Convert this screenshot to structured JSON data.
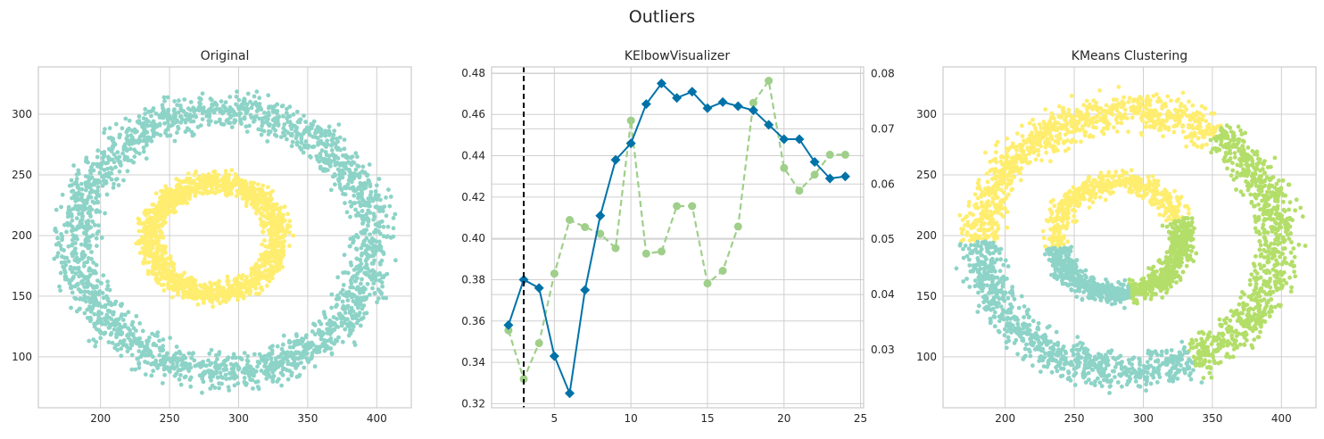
{
  "figure": {
    "title": "Outliers"
  },
  "colors": {
    "teal": "#8dd3c7",
    "yellow": "#ffed6f",
    "green": "#b3de69",
    "blue": "#1f77b4",
    "elbow_line": "#0072a8",
    "time_line": "#9fcf8a",
    "vline": "#000000",
    "grid": "#cfcfcf"
  },
  "chart_data": [
    {
      "type": "scatter",
      "title": "Original",
      "xlabel": "",
      "ylabel": "",
      "xlim": [
        155,
        425
      ],
      "ylim": [
        58,
        339
      ],
      "xticks": [
        200,
        250,
        300,
        350,
        400
      ],
      "yticks": [
        100,
        150,
        200,
        250,
        300
      ],
      "grid": true,
      "series": [
        {
          "color": "#8dd3c7",
          "shape": "ring",
          "center": [
            290,
            195
          ],
          "inner_radius": 85,
          "outer_radius": 130,
          "n_points": 2200
        },
        {
          "color": "#ffed6f",
          "shape": "ring",
          "center": [
            282,
            198
          ],
          "inner_radius": 32,
          "outer_radius": 60,
          "n_points": 1400
        }
      ]
    },
    {
      "type": "line",
      "title": "KElbowVisualizer",
      "xlabel": "",
      "ylabel": "",
      "xlim": [
        0.9,
        25.2
      ],
      "ylim": [
        0.318,
        0.483
      ],
      "y2lim": [
        0.0195,
        0.0812
      ],
      "xticks": [
        5,
        10,
        15,
        20,
        25
      ],
      "yticks": [
        0.32,
        0.34,
        0.36,
        0.38,
        0.4,
        0.42,
        0.44,
        0.46,
        0.48
      ],
      "y2ticks": [
        0.03,
        0.04,
        0.05,
        0.06,
        0.07,
        0.08
      ],
      "grid": true,
      "elbow_k": 3,
      "x": [
        2,
        3,
        4,
        5,
        6,
        7,
        8,
        9,
        10,
        11,
        12,
        13,
        14,
        15,
        16,
        17,
        18,
        19,
        20,
        21,
        22,
        23,
        24
      ],
      "series": [
        {
          "axis": "left",
          "style": "solid",
          "marker": "diamond",
          "values": [
            0.358,
            0.38,
            0.376,
            0.343,
            0.325,
            0.375,
            0.411,
            0.438,
            0.446,
            0.465,
            0.475,
            0.468,
            0.471,
            0.463,
            0.466,
            0.464,
            0.462,
            0.455,
            0.448,
            0.448,
            0.437,
            0.429,
            0.43
          ]
        },
        {
          "axis": "right",
          "style": "dashed",
          "marker": "circle",
          "values": [
            0.0335,
            0.0247,
            0.0312,
            0.0438,
            0.0535,
            0.0522,
            0.051,
            0.0484,
            0.0715,
            0.0474,
            0.0478,
            0.056,
            0.056,
            0.042,
            0.0443,
            0.0523,
            0.0747,
            0.0787,
            0.0629,
            0.0588,
            0.0617,
            0.0653,
            0.0653
          ]
        }
      ]
    },
    {
      "type": "scatter",
      "title": "KMeans Clustering",
      "xlabel": "",
      "ylabel": "",
      "xlim": [
        155,
        425
      ],
      "ylim": [
        58,
        339
      ],
      "xticks": [
        200,
        250,
        300,
        350,
        400
      ],
      "yticks": [
        100,
        150,
        200,
        250,
        300
      ],
      "grid": true,
      "series": [
        {
          "color": "#ffed6f",
          "region": "outer ring, upper-left",
          "center": [
            290,
            195
          ],
          "inner_radius": 85,
          "outer_radius": 130,
          "n_points": 900
        },
        {
          "color": "#b3de69",
          "region": "outer ring, right",
          "center": [
            290,
            195
          ],
          "inner_radius": 85,
          "outer_radius": 130,
          "n_points": 800
        },
        {
          "color": "#8dd3c7",
          "region": "outer ring, lower-left",
          "center": [
            290,
            195
          ],
          "inner_radius": 85,
          "outer_radius": 130,
          "n_points": 800
        },
        {
          "color": "#ffed6f",
          "region": "inner ring, top",
          "center": [
            282,
            198
          ],
          "inner_radius": 32,
          "outer_radius": 60,
          "n_points": 500
        },
        {
          "color": "#b3de69",
          "region": "inner ring, right",
          "center": [
            282,
            198
          ],
          "inner_radius": 32,
          "outer_radius": 60,
          "n_points": 450
        },
        {
          "color": "#8dd3c7",
          "region": "inner ring, lower-left",
          "center": [
            282,
            198
          ],
          "inner_radius": 32,
          "outer_radius": 60,
          "n_points": 450
        }
      ]
    }
  ]
}
